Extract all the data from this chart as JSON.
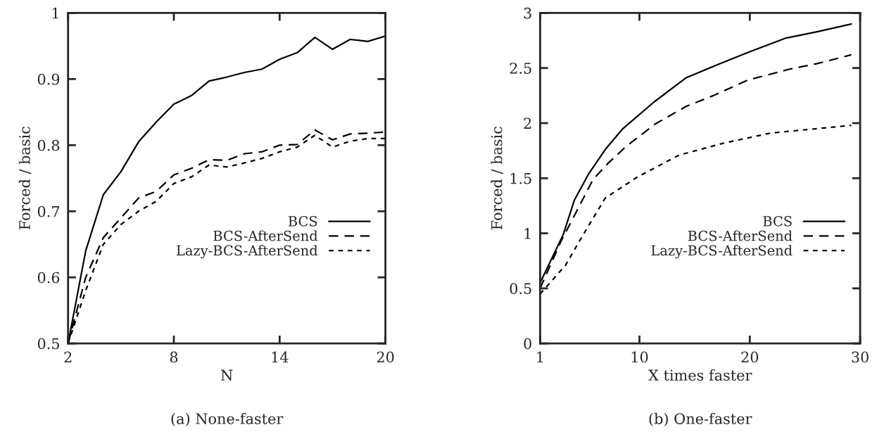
{
  "chart_data": [
    {
      "type": "line",
      "xlabel": "N",
      "ylabel": "Forced / basic",
      "annotations": [
        "(a) None-faster"
      ],
      "xlim": [
        2,
        20
      ],
      "xticks": [
        2,
        8,
        14,
        20
      ],
      "ylim": [
        0.5,
        1
      ],
      "yticks": [
        0.5,
        0.6,
        0.7,
        0.8,
        0.9,
        1
      ],
      "x": [
        2,
        3,
        4,
        5,
        6,
        7,
        8,
        9,
        10,
        11,
        12,
        13,
        14,
        15,
        16,
        17,
        18,
        19,
        20
      ],
      "legend": "bottom right",
      "grid": false,
      "series": [
        {
          "name": "BCS",
          "color": "#000000",
          "line_style": "solid",
          "values": [
            0.5,
            0.64,
            0.725,
            0.76,
            0.805,
            0.835,
            0.862,
            0.875,
            0.897,
            0.903,
            0.91,
            0.915,
            0.93,
            0.94,
            0.963,
            0.945,
            0.96,
            0.957,
            0.965
          ]
        },
        {
          "name": "BCS-AfterSend",
          "color": "#000000",
          "line_style": "dashed",
          "values": [
            0.5,
            0.6,
            0.66,
            0.69,
            0.72,
            0.73,
            0.755,
            0.765,
            0.778,
            0.777,
            0.787,
            0.79,
            0.8,
            0.801,
            0.823,
            0.808,
            0.817,
            0.818,
            0.82
          ]
        },
        {
          "name": "Lazy-BCS-AfterSend",
          "color": "#000000",
          "line_style": "dotted",
          "values": [
            0.5,
            0.58,
            0.65,
            0.68,
            0.7,
            0.715,
            0.742,
            0.752,
            0.77,
            0.767,
            0.773,
            0.78,
            0.79,
            0.797,
            0.815,
            0.797,
            0.806,
            0.81,
            0.81
          ]
        }
      ]
    },
    {
      "type": "line",
      "xlabel": "X times faster",
      "ylabel": "Forced / basic",
      "annotations": [
        "(b) One-faster"
      ],
      "xlim": [
        1,
        30
      ],
      "xticks": [
        1,
        10,
        20,
        30
      ],
      "ylim": [
        0,
        3
      ],
      "yticks": [
        0,
        0.5,
        1,
        1.5,
        2,
        2.5,
        3
      ],
      "legend": "bottom right",
      "grid": false,
      "series": [
        {
          "name": "BCS",
          "color": "#000000",
          "line_style": "solid",
          "x": [
            1,
            3.1,
            4.1,
            5.4,
            6.9,
            8.5,
            11.3,
            14.2,
            17.3,
            19.8,
            23.2,
            26.1,
            29.2
          ],
          "values": [
            0.55,
            0.99,
            1.3,
            1.54,
            1.76,
            1.95,
            2.19,
            2.41,
            2.54,
            2.64,
            2.77,
            2.83,
            2.9
          ]
        },
        {
          "name": "BCS-AfterSend",
          "color": "#000000",
          "line_style": "dashed",
          "x": [
            1,
            2.9,
            4.1,
            5.8,
            7.1,
            8.7,
            11.4,
            14.2,
            16.7,
            19.8,
            23.6,
            26.1,
            29.2
          ],
          "values": [
            0.5,
            0.93,
            1.16,
            1.49,
            1.63,
            1.78,
            1.99,
            2.15,
            2.25,
            2.39,
            2.49,
            2.54,
            2.62
          ]
        },
        {
          "name": "Lazy-BCS-AfterSend",
          "color": "#000000",
          "line_style": "dotted",
          "x": [
            1,
            3.3,
            4.8,
            6.9,
            9.8,
            13.6,
            17.7,
            21.9,
            26.1,
            29.2
          ],
          "values": [
            0.45,
            0.71,
            0.97,
            1.32,
            1.51,
            1.71,
            1.82,
            1.91,
            1.95,
            1.98
          ]
        }
      ]
    }
  ]
}
